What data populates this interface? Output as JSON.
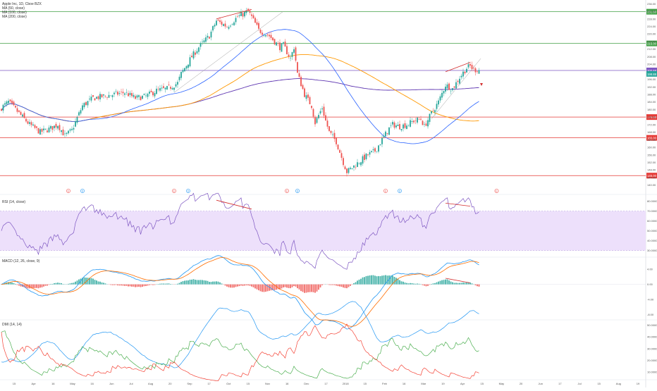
{
  "chart_data": {
    "type": "candlestick",
    "symbol_line": "Apple Inc, 1D, Cboe BZX",
    "ma_labels": [
      "MA (50, close)",
      "MA (100, close)",
      "MA (200, close)"
    ],
    "rsi_label": "RSI (14, close)",
    "macd_label": "MACD (12, 26, close, 9)",
    "dmi_label": "DMI (14, 14)",
    "x_ticks": [
      "15",
      "Apr",
      "16",
      "May",
      "16",
      "Jun",
      "Jul",
      "Aug",
      "20",
      "Sep",
      "17",
      "Oct",
      "15",
      "Nov",
      "16",
      "Dec",
      "17",
      "2018",
      "15",
      "Feb",
      "16",
      "Mar",
      "19",
      "Apr",
      "15",
      "May",
      "20",
      "Jun",
      "17",
      "Jul",
      "15",
      "Aug",
      "19"
    ],
    "price_ticks": [
      "236.00",
      "232.00",
      "228.00",
      "224.00",
      "220.00",
      "216.00",
      "212.00",
      "208.00",
      "204.00",
      "200.00",
      "196.00",
      "192.00",
      "188.00",
      "184.00",
      "180.00",
      "176.00",
      "172.00",
      "168.00",
      "164.00",
      "160.00",
      "156.00",
      "152.00",
      "148.00",
      "144.00",
      "140.00"
    ],
    "horizontal_levels": [
      {
        "label": "231.80",
        "value": 231.8,
        "color": "#43a047"
      },
      {
        "label": "215.00",
        "value": 215.0,
        "color": "#43a047"
      },
      {
        "label": "200.68",
        "value": 200.68,
        "color": "#7e57c2"
      },
      {
        "label": "176.00",
        "value": 176.0,
        "color": "#e53935"
      },
      {
        "label": "165.00",
        "value": 165.0,
        "color": "#e53935"
      },
      {
        "label": "145.00",
        "value": 145.0,
        "color": "#e53935"
      }
    ],
    "last_price": {
      "label": "198.88",
      "value": 198.88,
      "color": "#26a69a"
    },
    "earnings_markers": [
      "E",
      "D",
      "E",
      "D",
      "E",
      "D",
      "E",
      "D",
      "E"
    ],
    "rsi_ticks": [
      "80.0000",
      "70.0000",
      "60.0000",
      "50.0000",
      "40.0000",
      "30.0000"
    ],
    "macd_ticks": [
      "4.00",
      "0.00",
      "-4.00",
      "-8.00"
    ],
    "dmi_ticks": [
      "50.0000",
      "40.0000",
      "30.0000",
      "20.0000",
      "10.0000"
    ],
    "price_ylim": [
      138,
      238
    ],
    "rsi_ylim": [
      24,
      84
    ],
    "macd_ylim": [
      -9,
      7
    ],
    "dmi_ylim": [
      4,
      54
    ],
    "colors": {
      "up": "#26a69a",
      "down": "#ef5350",
      "ma50": "#2962ff",
      "ma100": "#ff9800",
      "ma200": "#5e35b1",
      "rsi": "#7e57c2",
      "rsi_band": "#ede0fb",
      "macd": "#2196f3",
      "signal": "#ff6d00",
      "hist_up": "#26a69a",
      "hist_down": "#ef5350",
      "di_plus": "#4caf50",
      "di_minus": "#f44336",
      "adx": "#2196f3",
      "divergence": "#d32f2f"
    }
  }
}
